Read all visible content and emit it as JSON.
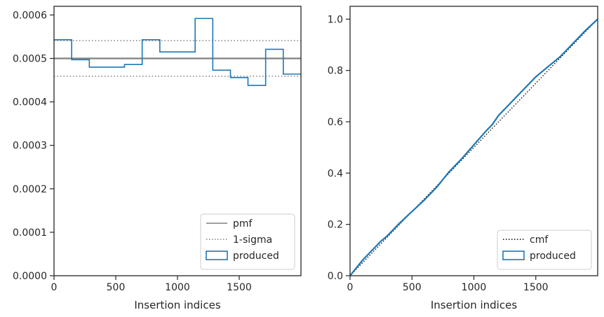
{
  "chart_data": [
    {
      "type": "line",
      "xlabel": "Insertion indices",
      "ylabel": "",
      "xlim": [
        0,
        2000
      ],
      "ylim": [
        0,
        0.00062
      ],
      "xticks": [
        0,
        500,
        1000,
        1500
      ],
      "xtick_labels": [
        "0",
        "500",
        "1000",
        "1500"
      ],
      "yticks": [
        0,
        0.0001,
        0.0002,
        0.0003,
        0.0004,
        0.0005,
        0.0006
      ],
      "ytick_labels": [
        "0.0000",
        "0.0001",
        "0.0002",
        "0.0003",
        "0.0004",
        "0.0005",
        "0.0006"
      ],
      "grid": false,
      "legend_position": "bottom-right",
      "series": [
        {
          "name": "pmf",
          "style": "solid",
          "color": "#808080",
          "x": [
            0,
            2000
          ],
          "y": [
            0.0005,
            0.0005
          ]
        },
        {
          "name": "1-sigma",
          "style": "dotted",
          "color": "#808080",
          "bands": [
            0.000541,
            0.000459
          ]
        },
        {
          "name": "produced",
          "style": "step",
          "color": "#1f77b4",
          "bin_edges": [
            0,
            143,
            286,
            571,
            714,
            857,
            1143,
            1286,
            1429,
            1571,
            1714,
            1857,
            2000
          ],
          "values": [
            0.000543,
            0.000497,
            0.00048,
            0.000486,
            0.000543,
            0.000515,
            0.000592,
            0.000473,
            0.000456,
            0.000438,
            0.000521,
            0.000464
          ]
        }
      ]
    },
    {
      "type": "line",
      "xlabel": "Insertion indices",
      "ylabel": "",
      "xlim": [
        0,
        2000
      ],
      "ylim": [
        0,
        1.05
      ],
      "xticks": [
        0,
        500,
        1000,
        1500
      ],
      "xtick_labels": [
        "0",
        "500",
        "1000",
        "1500"
      ],
      "yticks": [
        0,
        0.2,
        0.4,
        0.6,
        0.8,
        1.0
      ],
      "ytick_labels": [
        "0.0",
        "0.2",
        "0.4",
        "0.6",
        "0.8",
        "1.0"
      ],
      "grid": false,
      "legend_position": "bottom-right",
      "series": [
        {
          "name": "cmf",
          "style": "dotted",
          "color": "#000000",
          "x": [
            0,
            2000
          ],
          "y": [
            0,
            1
          ]
        },
        {
          "name": "produced",
          "style": "solid",
          "color": "#1f77b4",
          "x": [
            0,
            100,
            200,
            250,
            300,
            400,
            500,
            600,
            700,
            800,
            900,
            1000,
            1100,
            1150,
            1200,
            1300,
            1400,
            1500,
            1600,
            1700,
            1800,
            1900,
            2000
          ],
          "y": [
            0,
            0.06,
            0.11,
            0.135,
            0.155,
            0.205,
            0.25,
            0.295,
            0.345,
            0.405,
            0.455,
            0.51,
            0.565,
            0.59,
            0.625,
            0.675,
            0.725,
            0.775,
            0.815,
            0.855,
            0.905,
            0.955,
            1.0
          ]
        }
      ]
    }
  ]
}
